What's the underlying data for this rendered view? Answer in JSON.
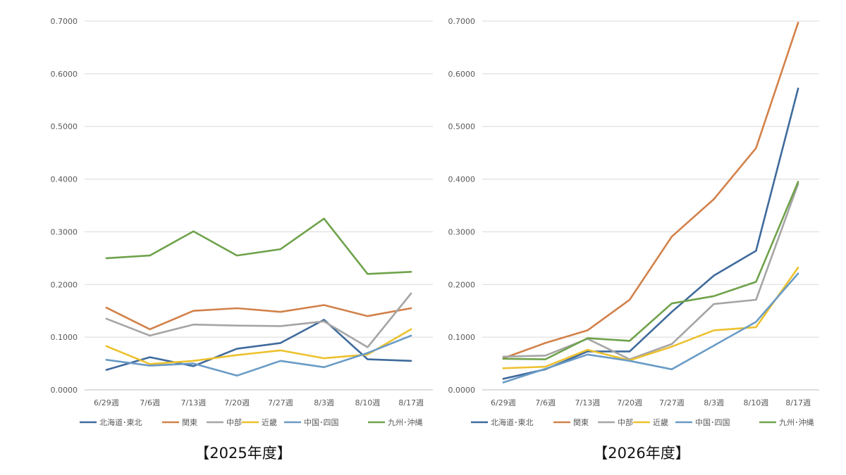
{
  "captions": {
    "left": "【2025年度】",
    "right": "【2026年度】"
  },
  "chart_data": [
    {
      "type": "line",
      "caption": "【2025年度】",
      "categories": [
        "6/29週",
        "7/6週",
        "7/13週",
        "7/20週",
        "7/27週",
        "8/3週",
        "8/10週",
        "8/17週"
      ],
      "ylim": [
        0,
        0.7
      ],
      "yticks": [
        "0.0000",
        "0.1000",
        "0.2000",
        "0.3000",
        "0.4000",
        "0.5000",
        "0.6000",
        "0.7000"
      ],
      "grid": true,
      "legend_position": "bottom",
      "series": [
        {
          "name": "北海道･東北",
          "color": "#3F6A9C",
          "values": [
            0.038,
            0.062,
            0.045,
            0.078,
            0.089,
            0.133,
            0.058,
            0.055
          ]
        },
        {
          "name": "関東",
          "color": "#D2814A",
          "values": [
            0.156,
            0.115,
            0.15,
            0.155,
            0.148,
            0.161,
            0.14,
            0.155
          ]
        },
        {
          "name": "中部",
          "color": "#A5A5A5",
          "values": [
            0.135,
            0.103,
            0.124,
            0.122,
            0.121,
            0.13,
            0.081,
            0.183
          ]
        },
        {
          "name": "近畿",
          "color": "#EDC12E",
          "values": [
            0.083,
            0.049,
            0.055,
            0.066,
            0.075,
            0.06,
            0.067,
            0.115
          ]
        },
        {
          "name": "中国･四国",
          "color": "#6A9BC6",
          "values": [
            0.057,
            0.046,
            0.05,
            0.027,
            0.055,
            0.043,
            0.07,
            0.103
          ]
        },
        {
          "name": "九州･沖縄",
          "color": "#6FA24B",
          "values": [
            0.25,
            0.255,
            0.301,
            0.255,
            0.267,
            0.325,
            0.22,
            0.224
          ]
        }
      ]
    },
    {
      "type": "line",
      "caption": "【2026年度】",
      "categories": [
        "6/29週",
        "7/6週",
        "7/13週",
        "7/20週",
        "7/27週",
        "8/3週",
        "8/10週",
        "8/17週"
      ],
      "ylim": [
        0,
        0.7
      ],
      "yticks": [
        "0.0000",
        "0.1000",
        "0.2000",
        "0.3000",
        "0.4000",
        "0.5000",
        "0.6000",
        "0.7000"
      ],
      "grid": true,
      "legend_position": "bottom",
      "series": [
        {
          "name": "北海道･東北",
          "color": "#3F6A9C",
          "values": [
            0.021,
            0.039,
            0.073,
            0.073,
            0.148,
            0.217,
            0.264,
            0.572
          ]
        },
        {
          "name": "関東",
          "color": "#D2814A",
          "values": [
            0.06,
            0.089,
            0.113,
            0.171,
            0.291,
            0.362,
            0.459,
            0.697
          ]
        },
        {
          "name": "中部",
          "color": "#A5A5A5",
          "values": [
            0.063,
            0.065,
            0.097,
            0.058,
            0.087,
            0.163,
            0.171,
            0.391
          ]
        },
        {
          "name": "近畿",
          "color": "#EDC12E",
          "values": [
            0.041,
            0.044,
            0.076,
            0.056,
            0.082,
            0.113,
            0.119,
            0.232
          ]
        },
        {
          "name": "中国･四国",
          "color": "#6A9BC6",
          "values": [
            0.014,
            0.04,
            0.067,
            0.055,
            0.039,
            0.084,
            0.129,
            0.221
          ]
        },
        {
          "name": "九州･沖縄",
          "color": "#6FA24B",
          "values": [
            0.059,
            0.058,
            0.098,
            0.093,
            0.164,
            0.178,
            0.205,
            0.395
          ]
        }
      ]
    }
  ]
}
